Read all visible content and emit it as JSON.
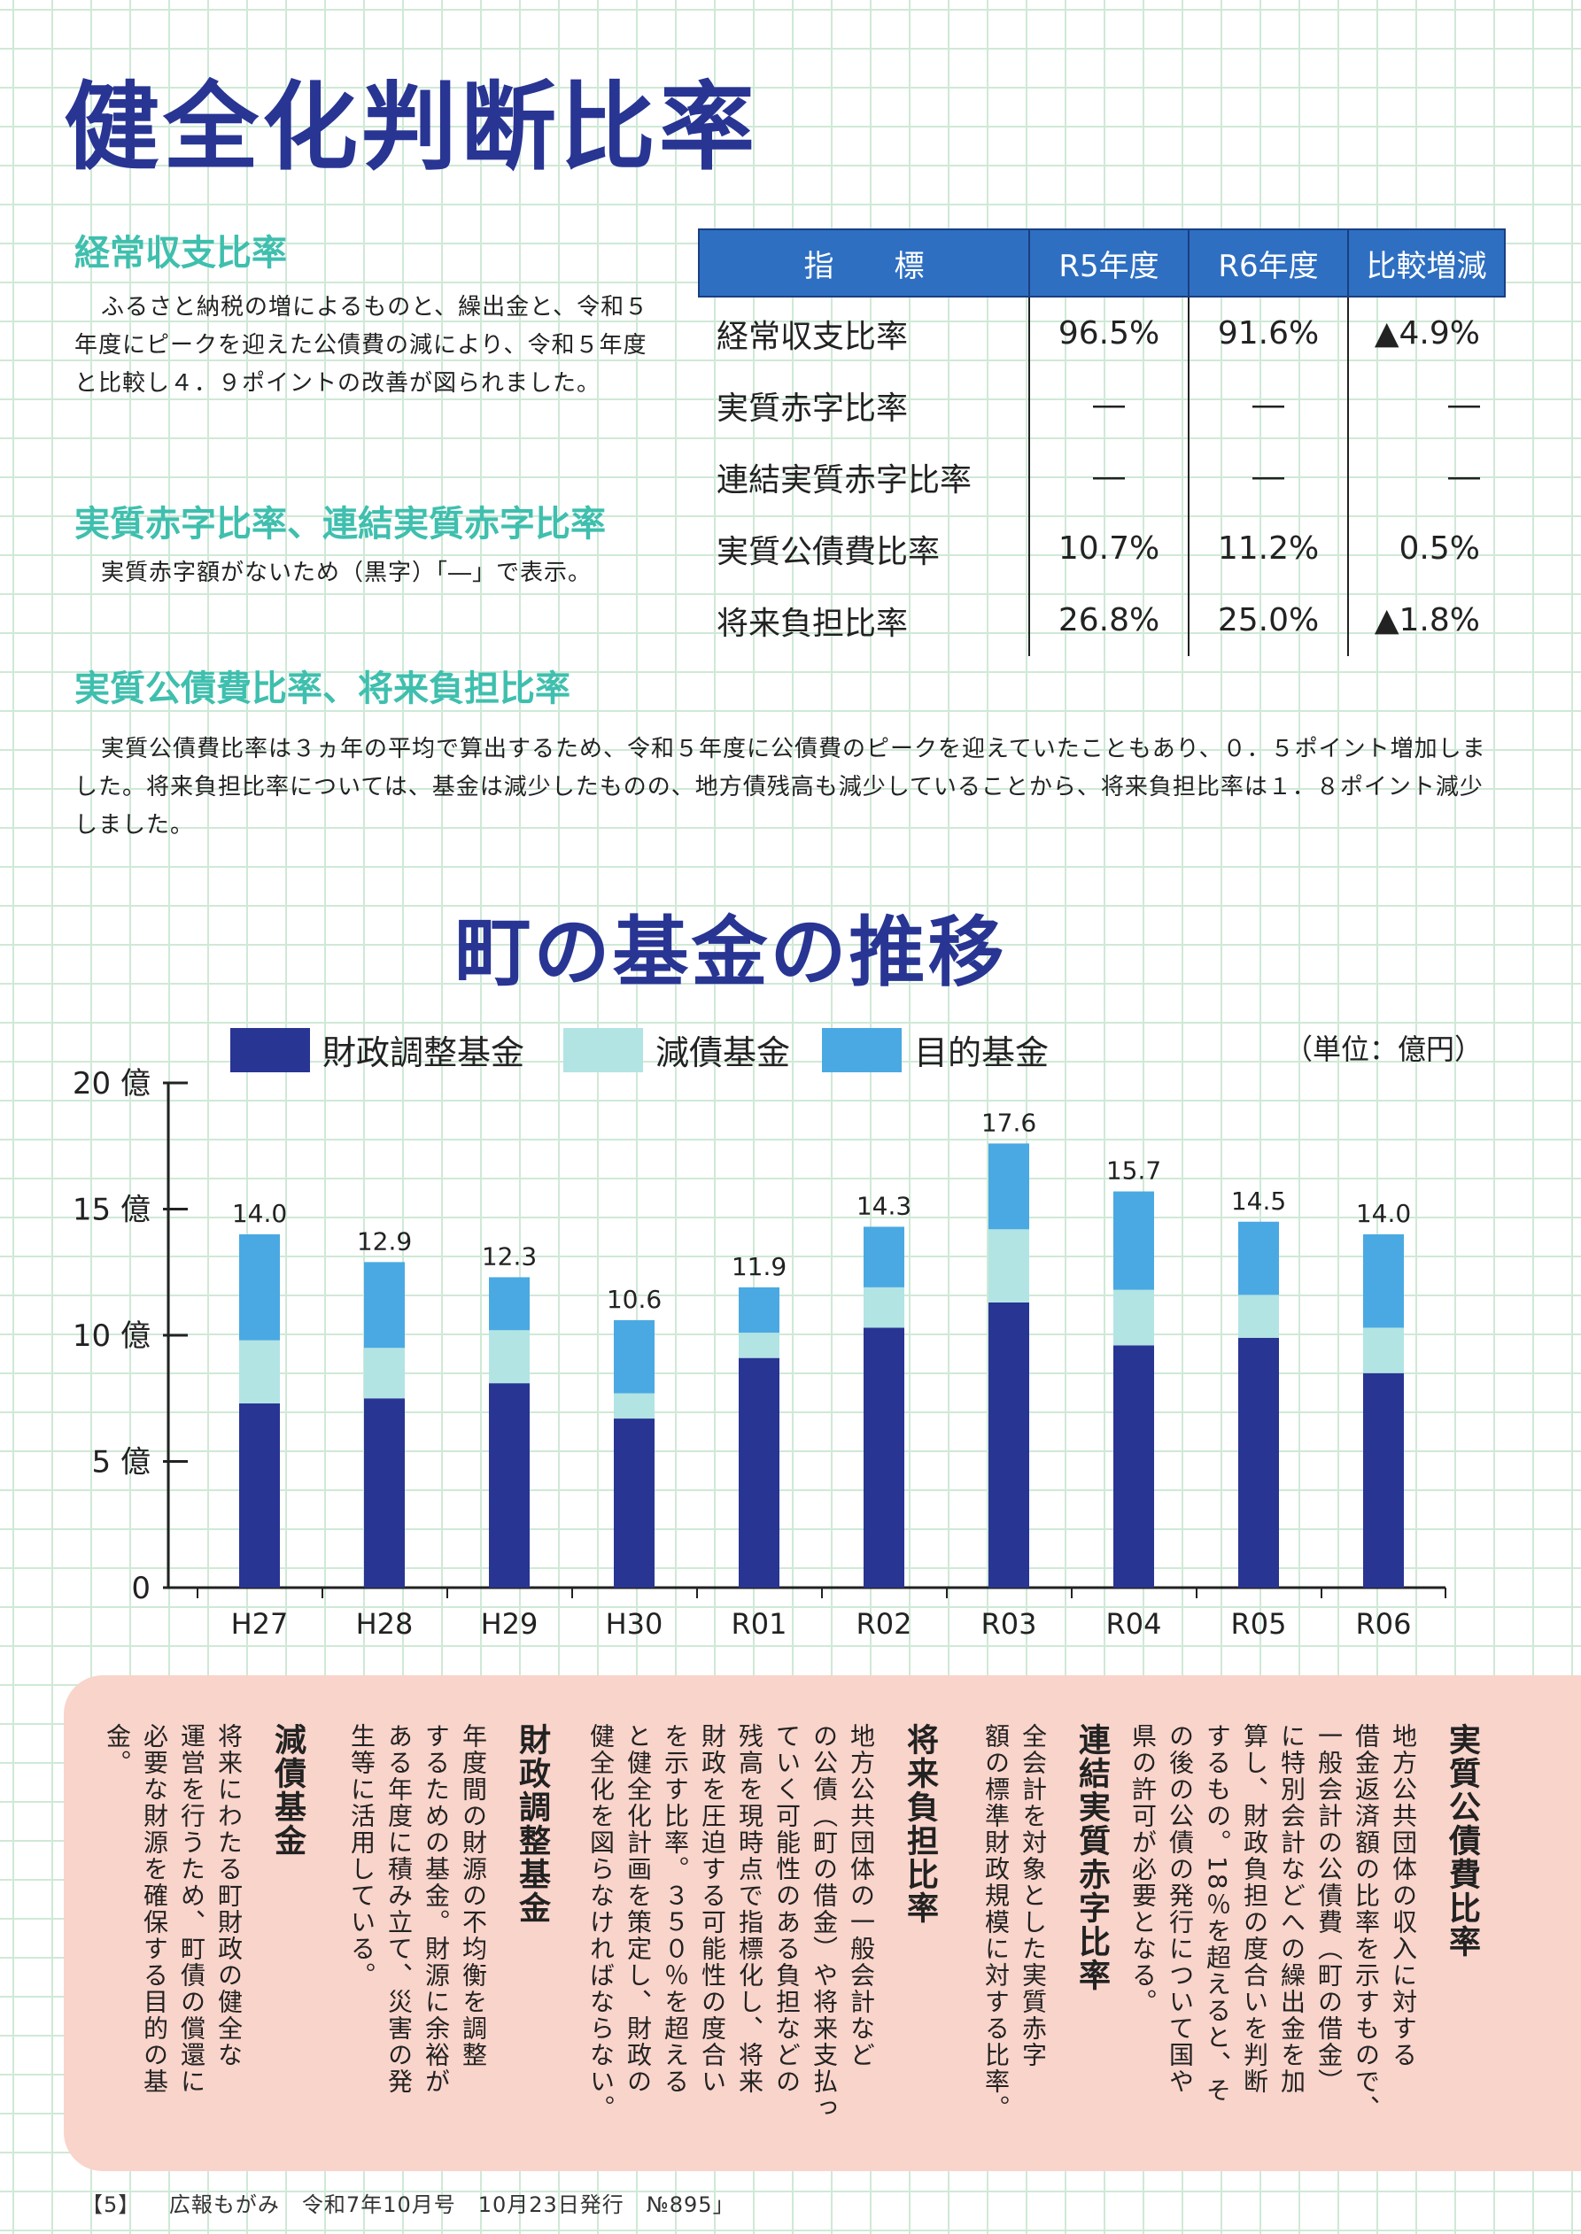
{
  "page_title": "健全化判断比率",
  "sections": {
    "s1_heading": "経常収支比率",
    "s1_body": "ふるさと納税の増によるものと、繰出金と、令和５年度にピークを迎えた公債費の減により、令和５年度と比較し４．９ポイントの改善が図られました。",
    "s2_heading": "実質赤字比率、連結実質赤字比率",
    "s2_body": "実質赤字額がないため（黒字）「―」で表示。",
    "s3_heading": "実質公債費比率、将来負担比率",
    "s3_body": "実質公債費比率は３ヵ年の平均で算出するため、令和５年度に公債費のピークを迎えていたこともあり、０．５ポイント増加しました。将来負担比率については、基金は減少したものの、地方債残高も減少していることから、将来負担比率は１．８ポイント減少しました。"
  },
  "table": {
    "headers": [
      "指　　標",
      "R5年度",
      "R6年度",
      "比較増減"
    ],
    "rows": [
      [
        "経常収支比率",
        "96.5%",
        "91.6%",
        "▲4.9%"
      ],
      [
        "実質赤字比率",
        "―",
        "―",
        "―"
      ],
      [
        "連結実質赤字比率",
        "―",
        "―",
        "―"
      ],
      [
        "実質公債費比率",
        "10.7%",
        "11.2%",
        "0.5%"
      ],
      [
        "将来負担比率",
        "26.8%",
        "25.0%",
        "▲1.8%"
      ]
    ]
  },
  "chart_title": "町の基金の推移",
  "chart_data": {
    "type": "bar",
    "stacked": true,
    "title": "町の基金の推移",
    "unit": "（単位：億円）",
    "categories": [
      "H27",
      "H28",
      "H29",
      "H30",
      "R01",
      "R02",
      "R03",
      "R04",
      "R05",
      "R06"
    ],
    "series": [
      {
        "name": "財政調整基金",
        "color": "#283593",
        "values": [
          7.3,
          7.5,
          8.1,
          6.7,
          9.1,
          10.3,
          11.3,
          9.6,
          9.9,
          8.5
        ]
      },
      {
        "name": "減債基金",
        "color": "#b2e4e4",
        "values": [
          2.5,
          2.0,
          2.1,
          1.0,
          1.0,
          1.6,
          2.9,
          2.2,
          1.7,
          1.8
        ]
      },
      {
        "name": "目的基金",
        "color": "#4aa9e2",
        "values": [
          4.2,
          3.4,
          2.1,
          2.9,
          1.8,
          2.4,
          3.4,
          3.9,
          2.9,
          3.7
        ]
      }
    ],
    "totals": [
      "14.0",
      "12.9",
      "12.3",
      "10.6",
      "11.9",
      "14.3",
      "17.6",
      "15.7",
      "14.5",
      "14.0"
    ],
    "ylim": [
      0,
      20
    ],
    "yticks": [
      {
        "value": 0,
        "label": "0"
      },
      {
        "value": 5,
        "label": "5 億"
      },
      {
        "value": 10,
        "label": "10 億"
      },
      {
        "value": 15,
        "label": "15 億"
      },
      {
        "value": 20,
        "label": "20 億"
      }
    ],
    "legend_position": "top"
  },
  "glossary": [
    {
      "term": "実質公債費比率",
      "lines": [
        "地方公共団体の収入に対する",
        "借金返済額の比率を示すもので、",
        "一般会計の公債費（町の借金）",
        "に特別会計などへの繰出金を加",
        "算し、財政負担の度合いを判断",
        "するもの。18％を超えると、そ",
        "の後の公債の発行について国や",
        "県の許可が必要となる。"
      ]
    },
    {
      "term": "連結実質赤字比率",
      "lines": [
        "全会計を対象とした実質赤字",
        "額の標準財政規模に対する比率。"
      ]
    },
    {
      "term": "将来負担比率",
      "lines": [
        "地方公共団体の一般会計など",
        "の公債（町の借金）や将来支払っ",
        "ていく可能性のある負担などの",
        "残高を現時点で指標化し、将来",
        "財政を圧迫する可能性の度合い",
        "を示す比率。３５０％を超える",
        "と健全化計画を策定し、財政の",
        "健全化を図らなければならない。"
      ]
    },
    {
      "term": "財政調整基金",
      "lines": [
        "年度間の財源の不均衡を調整",
        "するための基金。財源に余裕が",
        "ある年度に積み立て、災害の発",
        "生等に活用している。"
      ]
    },
    {
      "term": "減債基金",
      "lines": [
        "将来にわたる町財政の健全な",
        "運営を行うため、町債の償還に",
        "必要な財源を確保する目的の基",
        "金。"
      ]
    }
  ],
  "footer": {
    "page": "【5】",
    "text": "広報もがみ　令和7年10月号　10月23日発行　№895」"
  }
}
